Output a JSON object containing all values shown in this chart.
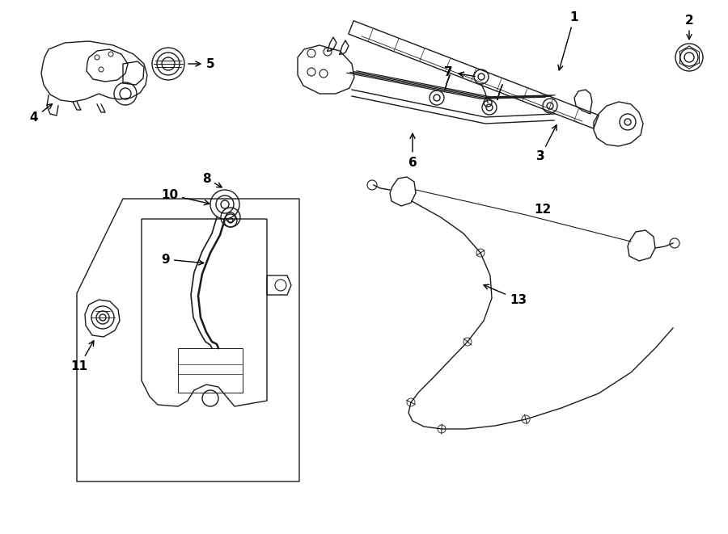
{
  "background_color": "#ffffff",
  "line_color": "#1a1a1a",
  "fig_width": 9.0,
  "fig_height": 6.61,
  "dpi": 100
}
